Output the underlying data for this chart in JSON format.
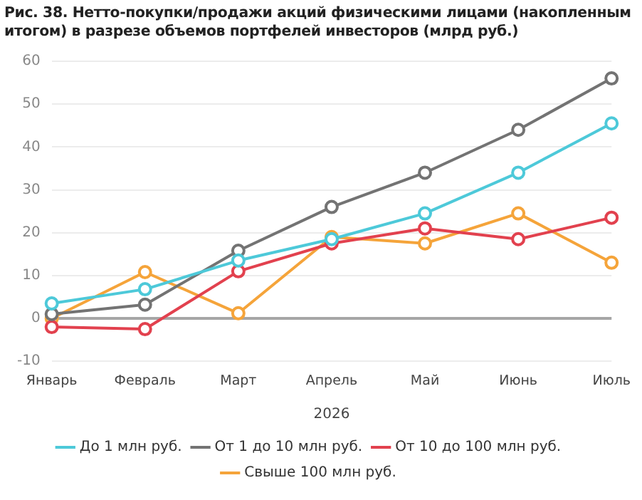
{
  "chart_data": {
    "type": "line",
    "title": "Рис. 38. Нетто-покупки/продажи акций физическими лицами (накопленным итогом) в разрезе объемов портфелей инвесторов (млрд руб.)",
    "xlabel": "2026",
    "categories": [
      "Январь",
      "Февраль",
      "Март",
      "Апрель",
      "Май",
      "Июнь",
      "Июль"
    ],
    "series": [
      {
        "name": "До 1 млн руб.",
        "color": "#4dc9d9",
        "values": [
          3.5,
          6.8,
          13.5,
          18.5,
          24.5,
          34,
          45.5
        ]
      },
      {
        "name": "От 1 до 10 млн руб.",
        "color": "#737373",
        "values": [
          1,
          3.2,
          15.8,
          26,
          34,
          44,
          56
        ]
      },
      {
        "name": "От 10 до 100 млн руб.",
        "color": "#e2414e",
        "values": [
          -2,
          -2.5,
          11,
          17.5,
          21,
          18.5,
          23.5
        ]
      },
      {
        "name": "Свыше 100 млн руб.",
        "color": "#f5a43a",
        "values": [
          0,
          10.8,
          1.2,
          19,
          17.5,
          24.5,
          13
        ]
      }
    ],
    "ylim": [
      -10,
      60
    ],
    "yticks": [
      -10,
      0,
      10,
      20,
      30,
      40,
      50,
      60
    ],
    "ref_lines": [
      {
        "axis": "y",
        "value": 0,
        "color": "#a6a6a6"
      }
    ],
    "grid": "y",
    "legend": "bottom",
    "marker": "circle",
    "line_style": "solid"
  }
}
